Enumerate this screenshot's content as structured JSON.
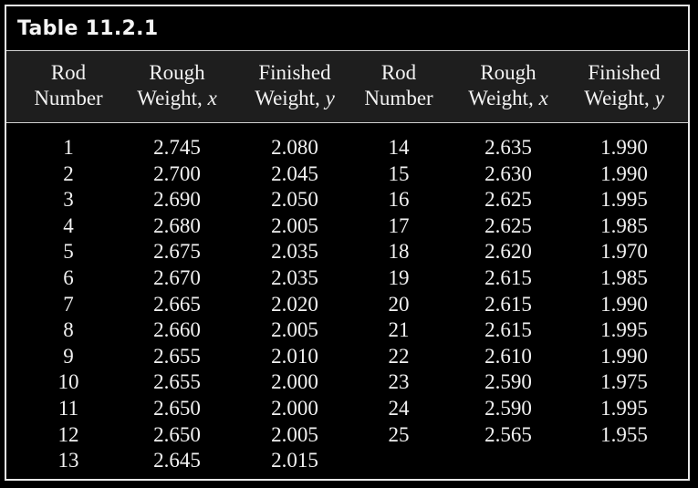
{
  "title": "Table 11.2.1",
  "columns": [
    {
      "line1": "Rod",
      "line2": "Number",
      "var": ""
    },
    {
      "line1": "Rough",
      "line2": "Weight, ",
      "var": "x"
    },
    {
      "line1": "Finished",
      "line2": "Weight, ",
      "var": "y"
    },
    {
      "line1": "Rod",
      "line2": "Number",
      "var": ""
    },
    {
      "line1": "Rough",
      "line2": "Weight, ",
      "var": "x"
    },
    {
      "line1": "Finished",
      "line2": "Weight, ",
      "var": "y"
    }
  ],
  "left_rows": [
    [
      "1",
      "2.745",
      "2.080"
    ],
    [
      "2",
      "2.700",
      "2.045"
    ],
    [
      "3",
      "2.690",
      "2.050"
    ],
    [
      "4",
      "2.680",
      "2.005"
    ],
    [
      "5",
      "2.675",
      "2.035"
    ],
    [
      "6",
      "2.670",
      "2.035"
    ],
    [
      "7",
      "2.665",
      "2.020"
    ],
    [
      "8",
      "2.660",
      "2.005"
    ],
    [
      "9",
      "2.655",
      "2.010"
    ],
    [
      "10",
      "2.655",
      "2.000"
    ],
    [
      "11",
      "2.650",
      "2.000"
    ],
    [
      "12",
      "2.650",
      "2.005"
    ],
    [
      "13",
      "2.645",
      "2.015"
    ]
  ],
  "right_rows": [
    [
      "14",
      "2.635",
      "1.990"
    ],
    [
      "15",
      "2.630",
      "1.990"
    ],
    [
      "16",
      "2.625",
      "1.995"
    ],
    [
      "17",
      "2.625",
      "1.985"
    ],
    [
      "18",
      "2.620",
      "1.970"
    ],
    [
      "19",
      "2.615",
      "1.985"
    ],
    [
      "20",
      "2.615",
      "1.990"
    ],
    [
      "21",
      "2.615",
      "1.995"
    ],
    [
      "22",
      "2.610",
      "1.990"
    ],
    [
      "23",
      "2.590",
      "1.975"
    ],
    [
      "24",
      "2.590",
      "1.995"
    ],
    [
      "25",
      "2.565",
      "1.955"
    ]
  ]
}
